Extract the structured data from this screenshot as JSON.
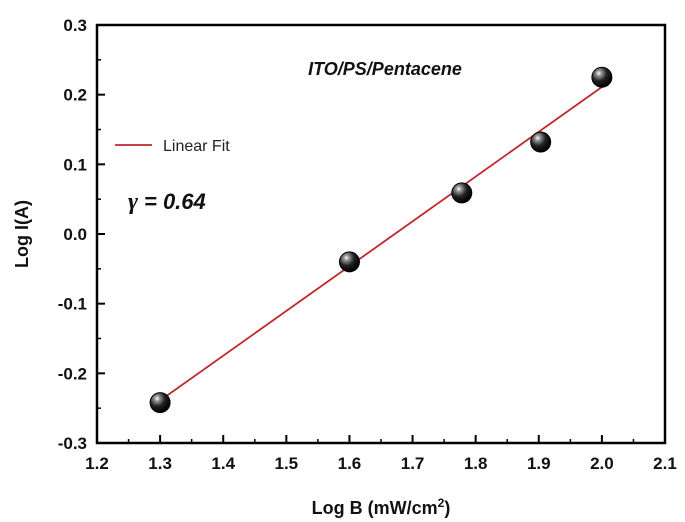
{
  "chart_data": {
    "type": "scatter",
    "xlabel": "Log B (mW/cm",
    "xlabel_sup": "2",
    "xlabel_end": ")",
    "ylabel": "Log I(A)",
    "xlim": [
      1.2,
      2.1
    ],
    "ylim": [
      -0.3,
      0.3
    ],
    "x_ticks": [
      "1.2",
      "1.3",
      "1.4",
      "1.5",
      "1.6",
      "1.7",
      "1.8",
      "1.9",
      "2.0",
      "2.1"
    ],
    "y_ticks": [
      "-0.3",
      "-0.2",
      "-0.1",
      "0.0",
      "0.1",
      "0.2",
      "0.3"
    ],
    "points": [
      {
        "x": 1.3,
        "y": -0.242
      },
      {
        "x": 1.6,
        "y": -0.04
      },
      {
        "x": 1.778,
        "y": 0.059
      },
      {
        "x": 1.903,
        "y": 0.132
      },
      {
        "x": 2.0,
        "y": 0.225
      }
    ],
    "fit_line": {
      "name": "Linear Fit",
      "color": "#c0282d",
      "x": [
        1.3,
        2.0
      ],
      "y": [
        -0.239,
        0.211
      ]
    },
    "annotation": "ITO/PS/Pentacene",
    "gamma_symbol": "γ",
    "gamma_text": "= 0.64",
    "legend_position": "top-left",
    "grid": false
  }
}
